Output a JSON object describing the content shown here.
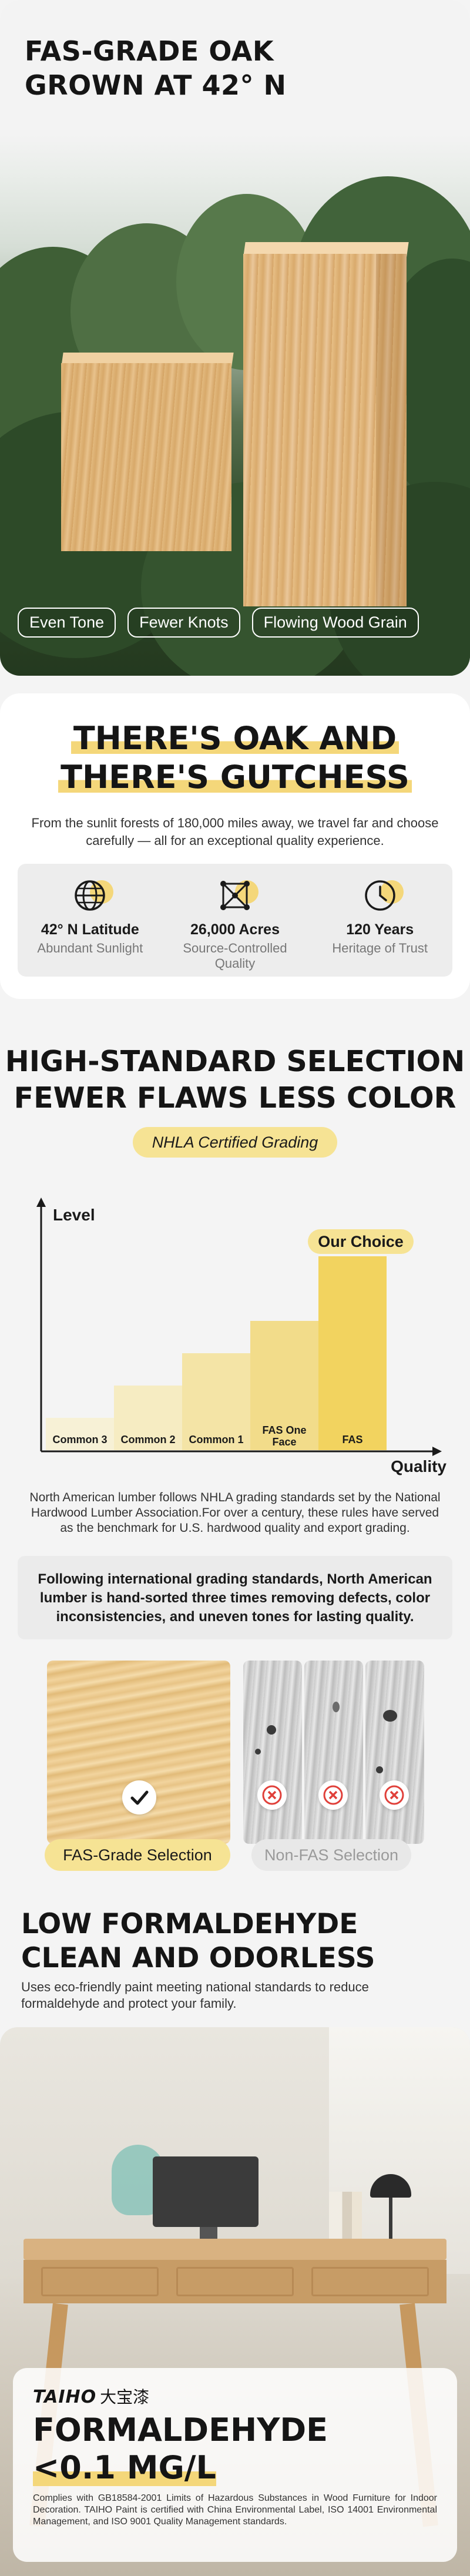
{
  "hero": {
    "title_line1": "FAS-GRADE OAK",
    "title_line2": "GROWN AT 42° N",
    "tags": [
      "Even Tone",
      "Fewer Knots",
      "Flowing Wood Grain"
    ]
  },
  "oak_section": {
    "title_line1": "THERE'S OAK AND",
    "title_line2": "THERE'S GUTCHESS",
    "description": "From the sunlit forests of 180,000 miles away, we travel far and choose carefully — all for an exceptional quality experience.",
    "stats": [
      {
        "icon": "globe-icon",
        "value": "42° N Latitude",
        "label": "Abundant Sunlight"
      },
      {
        "icon": "network-icon",
        "value": "26,000 Acres",
        "label": "Source-Controlled Quality"
      },
      {
        "icon": "clock-icon",
        "value": "120 Years",
        "label": "Heritage of Trust"
      }
    ]
  },
  "selection_section": {
    "title_line1": "HIGH-STANDARD SELECTION",
    "title_line2": "FEWER FLAWS LESS COLOR",
    "pill": "NHLA Certified Grading",
    "description": "North American lumber follows NHLA grading standards set by the National Hardwood Lumber Association.For over a century, these rules have served as the benchmark for U.S. hardwood quality and export grading.",
    "info_box": "Following international grading standards, North American lumber is hand-sorted three times removing defects, color inconsistencies, and uneven tones for lasting quality.",
    "good_label": "FAS-Grade Selection",
    "bad_label": "Non-FAS Selection"
  },
  "chart_data": {
    "type": "bar",
    "categories": [
      "Common 3",
      "Common 2",
      "Common 1",
      "FAS One Face",
      "FAS"
    ],
    "values": [
      1,
      2,
      3,
      4,
      6
    ],
    "ylabel": "Level",
    "xlabel": "Quality",
    "highlight_label": "Our Choice",
    "colors": [
      "#f7f1d6",
      "#f6ecc2",
      "#f4e4a6",
      "#f2dc8a",
      "#f2d35f"
    ]
  },
  "formaldehyde_section": {
    "title_line1": "LOW FORMALDEHYDE",
    "title_line2": "CLEAN AND ODORLESS",
    "description": "Uses eco-friendly paint meeting national standards to reduce formaldehyde and protect your family.",
    "brand": "TAIHO",
    "brand_cn": "大宝漆",
    "claim_line1": "FORMALDEHYDE",
    "claim_line2": "<0.1 MG/L",
    "fine_print": "Complies with GB18584-2001 Limits of Hazardous Substances in Wood Furniture for Indoor Decoration. TAIHO Paint is certified with China Environmental Label, ISO 14001 Environmental Management, and ISO 9001 Quality Management standards."
  }
}
